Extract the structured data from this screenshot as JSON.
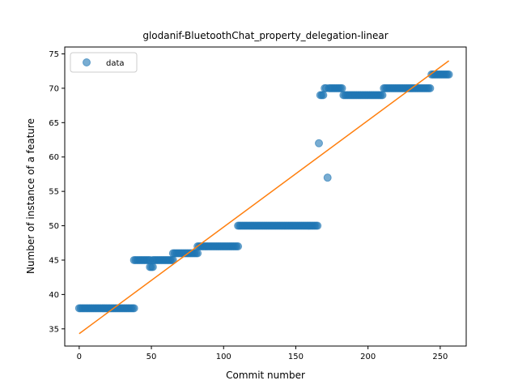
{
  "chart_data": {
    "type": "scatter",
    "title": "glodanif-BluetoothChat_property_delegation-linear",
    "xlabel": "Commit number",
    "ylabel": "Number of instance of a feature",
    "xlim": [
      -10,
      268
    ],
    "ylim": [
      32.5,
      76
    ],
    "xticks": [
      0,
      50,
      100,
      150,
      200,
      250
    ],
    "yticks": [
      35,
      40,
      45,
      50,
      55,
      60,
      65,
      70,
      75
    ],
    "legend": {
      "placement": "top-left",
      "entries": [
        "data"
      ]
    },
    "grid": false,
    "colors": {
      "points": "#1f77b4",
      "fit": "#ff7f0e"
    },
    "series": [
      {
        "name": "data",
        "kind": "points",
        "segments": [
          {
            "x_start": 0,
            "x_end": 38,
            "y": 38
          },
          {
            "x_start": 38,
            "x_end": 49,
            "y": 45
          },
          {
            "x_start": 49,
            "x_end": 51,
            "y": 44
          },
          {
            "x_start": 51,
            "x_end": 65,
            "y": 45
          },
          {
            "x_start": 65,
            "x_end": 82,
            "y": 46
          },
          {
            "x_start": 82,
            "x_end": 110,
            "y": 47
          },
          {
            "x_start": 110,
            "x_end": 165,
            "y": 50
          }
        ],
        "points": [
          [
            166,
            62
          ],
          [
            167,
            69
          ],
          [
            168,
            69
          ],
          [
            169,
            69
          ],
          [
            170,
            70
          ],
          [
            171,
            70
          ],
          [
            172,
            57
          ],
          [
            173,
            70
          ],
          [
            174,
            70
          ],
          [
            175,
            70
          ],
          [
            176,
            70
          ],
          [
            177,
            70
          ],
          [
            178,
            70
          ],
          [
            179,
            70
          ],
          [
            180,
            70
          ],
          [
            181,
            70
          ],
          [
            182,
            70
          ]
        ],
        "segments_tail": [
          {
            "x_start": 183,
            "x_end": 210,
            "y": 69
          },
          {
            "x_start": 211,
            "x_end": 243,
            "y": 70
          },
          {
            "x_start": 244,
            "x_end": 256,
            "y": 72
          }
        ]
      },
      {
        "name": "",
        "kind": "line",
        "x": [
          0,
          256
        ],
        "y": [
          34.3,
          74.0
        ]
      }
    ]
  }
}
